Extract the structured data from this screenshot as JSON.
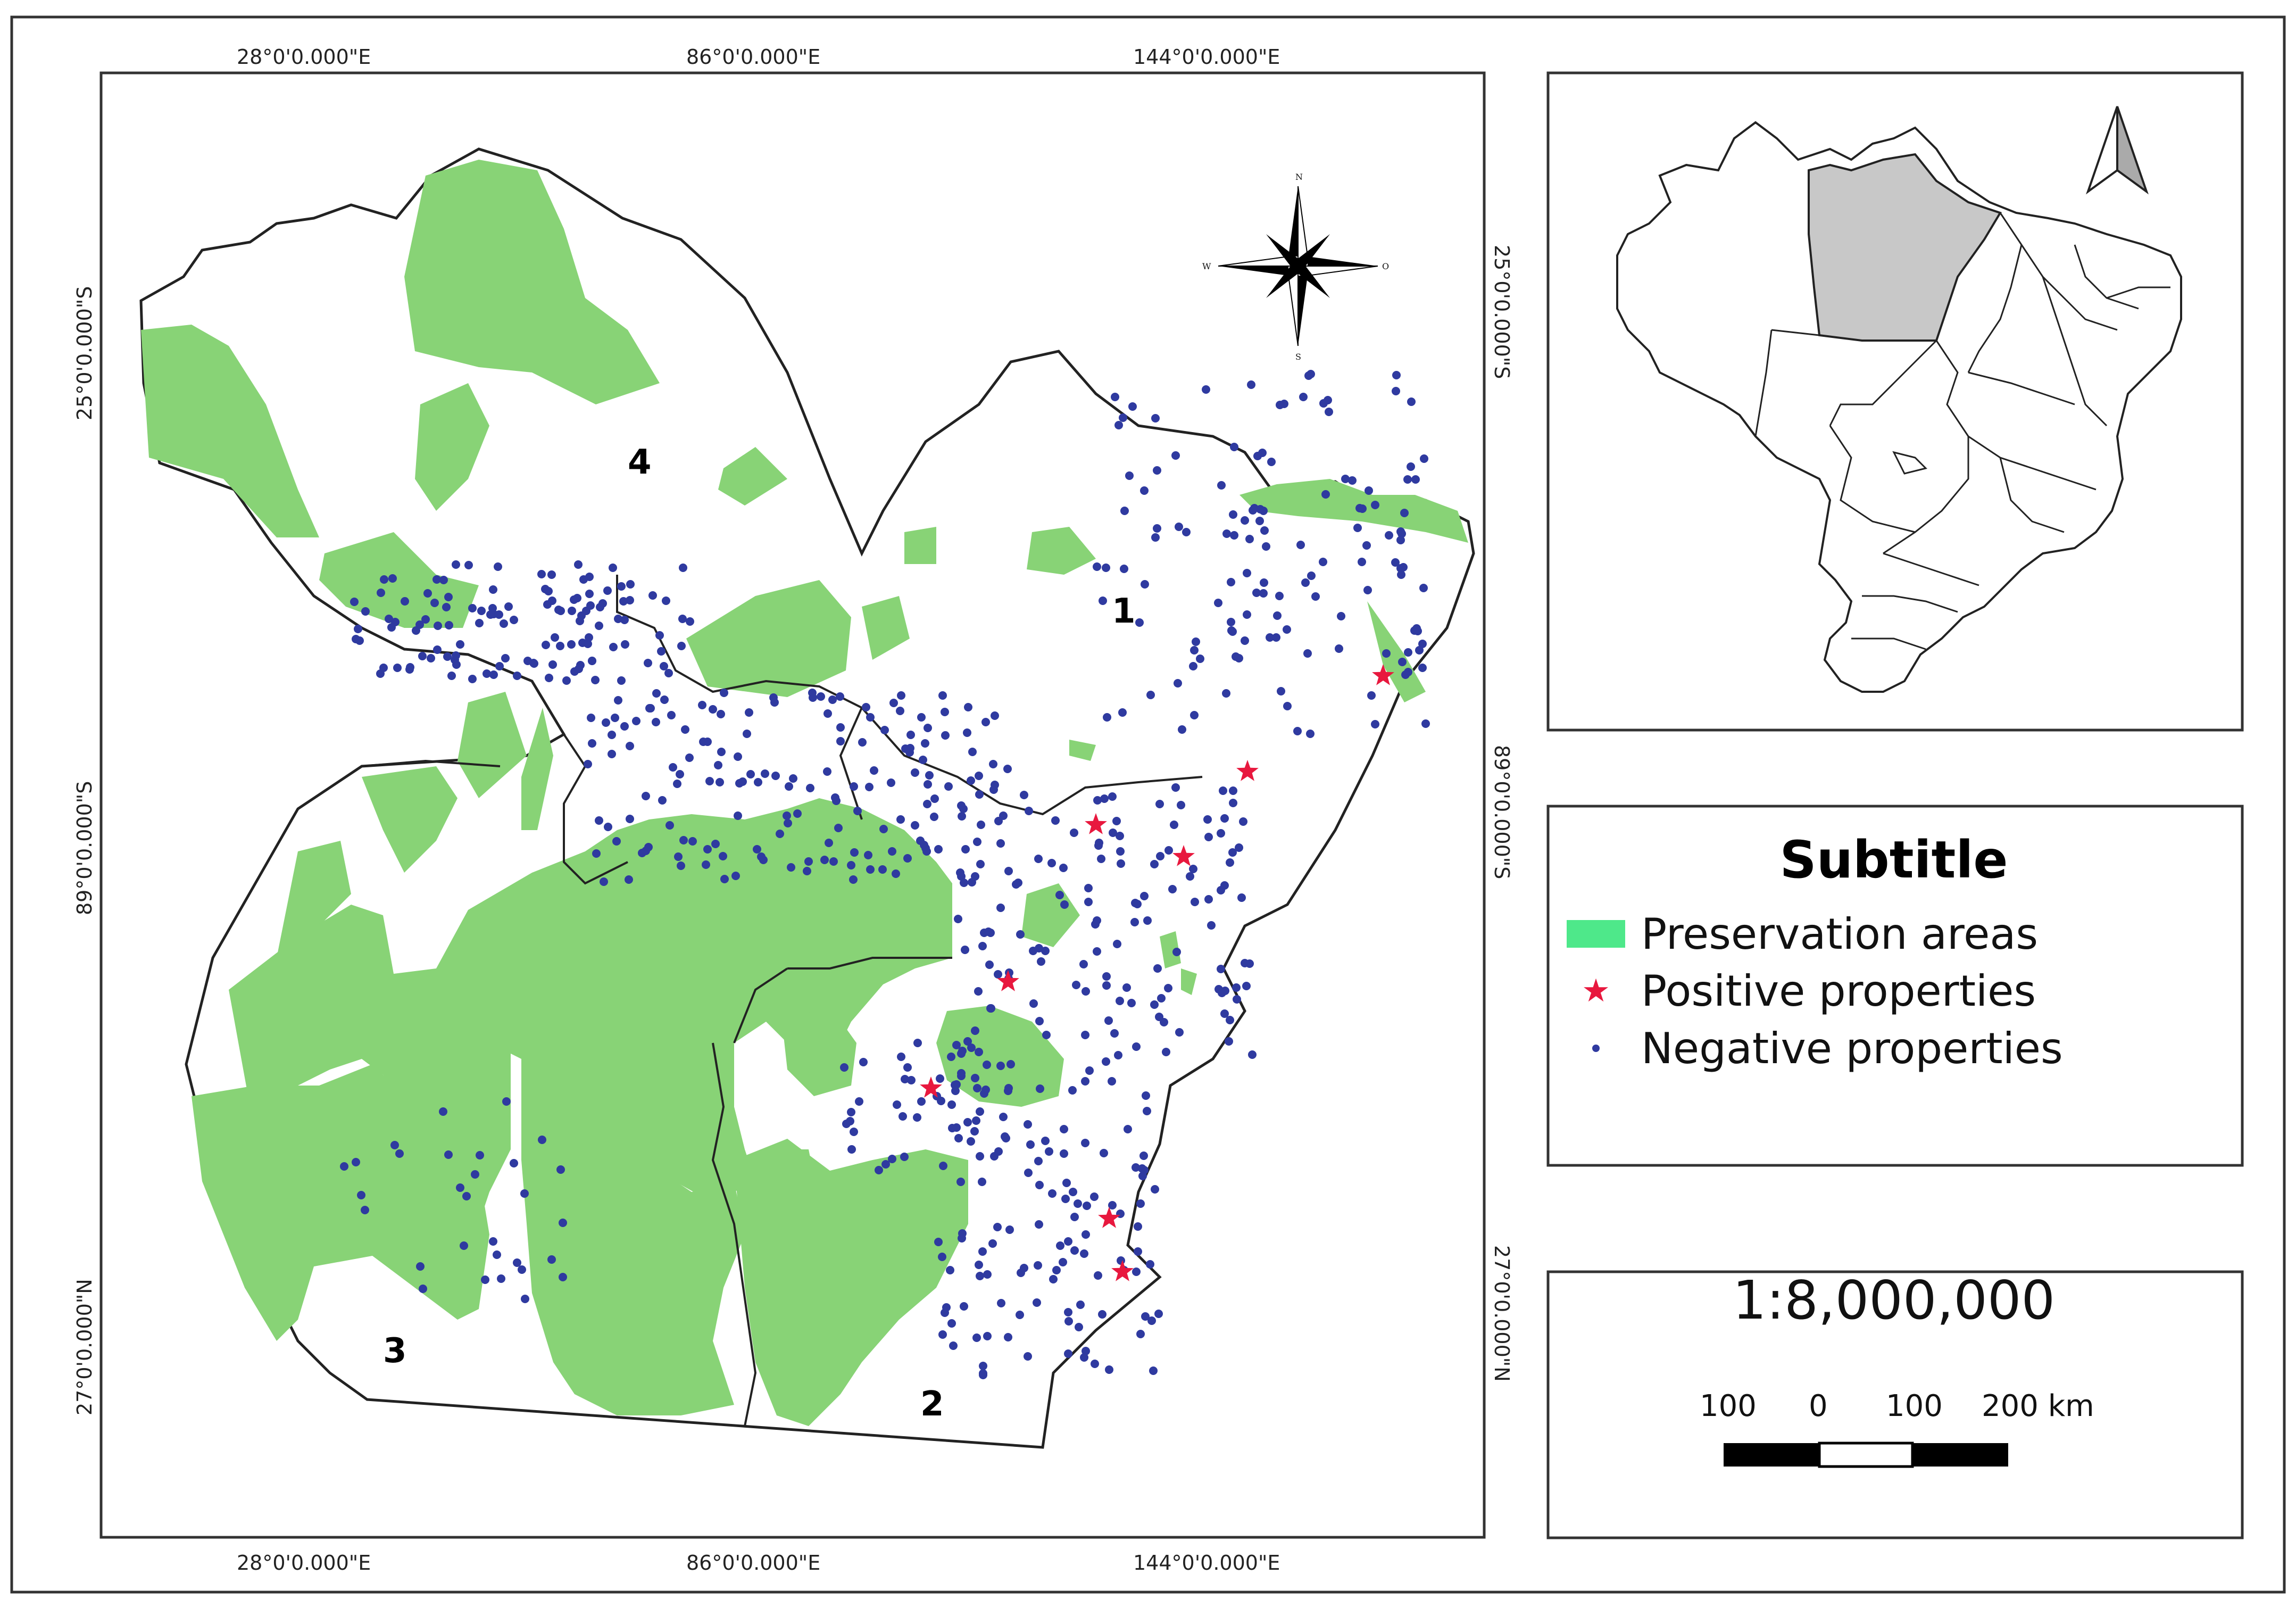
{
  "top_coords": [
    "28°0'0.000\"E",
    "86°0'0.000\"E",
    "144°0'0.000\"E"
  ],
  "bottom_coords": [
    "28°0'0.000\"E",
    "86°0'0.000\"E",
    "144°0'0.000\"E"
  ],
  "left_coords": [
    "25°0'0.000\"S",
    "89°0'0.000\"S",
    "27°0'0.000\"N"
  ],
  "right_coords": [
    "25°0'0.000\"S",
    "89°0'0.000\"S",
    "27°0'0.000\"N"
  ],
  "regions": [
    "1",
    "2",
    "3",
    "4"
  ],
  "compass": {
    "n": "N",
    "s": "S",
    "w": "W",
    "e": "O"
  },
  "legend": {
    "title": "Subtitle",
    "items": [
      {
        "label": "Preservation areas",
        "color": "#4ee88a"
      },
      {
        "label": "Positive properties",
        "color": "#e8183e"
      },
      {
        "label": "Negative properties",
        "color": "#2f3aa0"
      }
    ]
  },
  "scale": {
    "ratio": "1:8,000,000",
    "ticks": [
      "100",
      "0",
      "100",
      "200 km"
    ]
  },
  "colors": {
    "preservation_fill": "#88d376",
    "negative_point": "#2f3aa0",
    "positive_point": "#e8183e",
    "highlighted_state": "#c8c8c8"
  }
}
